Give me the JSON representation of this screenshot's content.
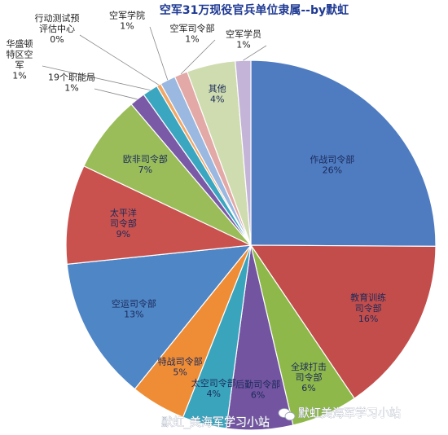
{
  "chart_data": {
    "type": "pie",
    "title": "空军31万现役官兵单位隶属--by默虹",
    "slices": [
      {
        "label": "作战司令部",
        "value_text": "26%",
        "value": 26,
        "color": "#4f7cc1"
      },
      {
        "label": "教育训练司令部",
        "value_text": "16%",
        "value": 16,
        "color": "#c34d4b"
      },
      {
        "label": "全球打击司令部",
        "value_text": "6%",
        "value": 6,
        "color": "#8fb84a"
      },
      {
        "label": "后勤司令部",
        "value_text": "6%",
        "value": 6,
        "color": "#7354a0"
      },
      {
        "label": "太空司令部",
        "value_text": "4%",
        "value": 4,
        "color": "#3aa4bd"
      },
      {
        "label": "特战司令部",
        "value_text": "5%",
        "value": 5,
        "color": "#ef8d36"
      },
      {
        "label": "空运司令部",
        "value_text": "13%",
        "value": 13,
        "color": "#4f86c6"
      },
      {
        "label": "太平洋司令部",
        "value_text": "9%",
        "value": 9,
        "color": "#c9524e"
      },
      {
        "label": "欧非司令部",
        "value_text": "7%",
        "value": 7,
        "color": "#9abd5a"
      },
      {
        "label": "19个职能局",
        "value_text": "1%",
        "value": 1.4,
        "color": "#7a5aa6"
      },
      {
        "label": "华盛顿特区空军",
        "value_text": "1%",
        "value": 1.4,
        "color": "#3aa6c0"
      },
      {
        "label": "行动测试预评估中心",
        "value_text": "0%",
        "value": 0.4,
        "color": "#f1a766"
      },
      {
        "label": "空军学院",
        "value_text": "1%",
        "value": 1.4,
        "color": "#9ab8e0"
      },
      {
        "label": "空军司令部",
        "value_text": "1%",
        "value": 1.2,
        "color": "#e2a9a6"
      },
      {
        "label": "其他",
        "value_text": "4%",
        "value": 4.4,
        "color": "#cfdcb0"
      },
      {
        "label": "空军学员",
        "value_text": "1%",
        "value": 1.4,
        "color": "#c4b5d8"
      }
    ]
  },
  "watermark": {
    "bottom_text": "默虹_美海军学习小站",
    "brand_text": "默虹美海军学习小站"
  }
}
